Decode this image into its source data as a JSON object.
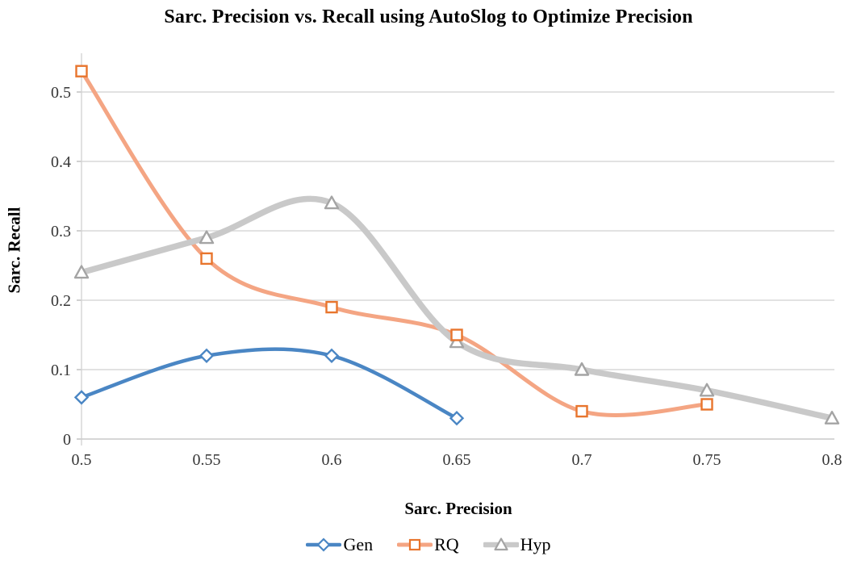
{
  "chart_data": {
    "type": "line",
    "title": "Sarc. Precision vs. Recall using AutoSlog to Optimize Precision",
    "xlabel": "Sarc. Precision",
    "ylabel": "Sarc. Recall",
    "xlim": [
      0.5,
      0.8
    ],
    "ylim": [
      0,
      0.55
    ],
    "x_ticks": [
      0.5,
      0.55,
      0.6,
      0.65,
      0.7,
      0.75,
      0.8
    ],
    "x_tick_labels": [
      "0.5",
      "0.55",
      "0.6",
      "0.65",
      "0.7",
      "0.75",
      "0.8"
    ],
    "y_ticks": [
      0,
      0.1,
      0.2,
      0.3,
      0.4,
      0.5
    ],
    "y_tick_labels": [
      "0",
      "0.1",
      "0.2",
      "0.3",
      "0.4",
      "0.5"
    ],
    "grid": "horizontal-only",
    "smooth_lines": true,
    "legend_position": "bottom",
    "colors": {
      "grid": "#d9d9d9",
      "axis": "#c9c9c9",
      "tick": "#bdbdbd",
      "marker_fill": "#ffffff",
      "text": "#363636",
      "title_text": "#000000"
    },
    "series": [
      {
        "name": "Gen",
        "marker": "diamond",
        "line_color": "#4a86c4",
        "marker_color": "#4a86c4",
        "line_width": 4.5,
        "x": [
          0.5,
          0.55,
          0.6,
          0.65
        ],
        "y": [
          0.06,
          0.12,
          0.12,
          0.03
        ]
      },
      {
        "name": "RQ",
        "marker": "square",
        "line_color": "#f4a583",
        "marker_color": "#e8752d",
        "line_width": 5,
        "x": [
          0.5,
          0.55,
          0.6,
          0.65,
          0.7,
          0.75
        ],
        "y": [
          0.53,
          0.26,
          0.19,
          0.15,
          0.04,
          0.05
        ]
      },
      {
        "name": "Hyp",
        "marker": "triangle",
        "line_color": "#c9c9c9",
        "marker_color": "#a4a4a4",
        "line_width": 7.5,
        "x": [
          0.5,
          0.55,
          0.6,
          0.65,
          0.7,
          0.75,
          0.8
        ],
        "y": [
          0.24,
          0.29,
          0.34,
          0.14,
          0.1,
          0.07,
          0.03
        ]
      }
    ]
  }
}
